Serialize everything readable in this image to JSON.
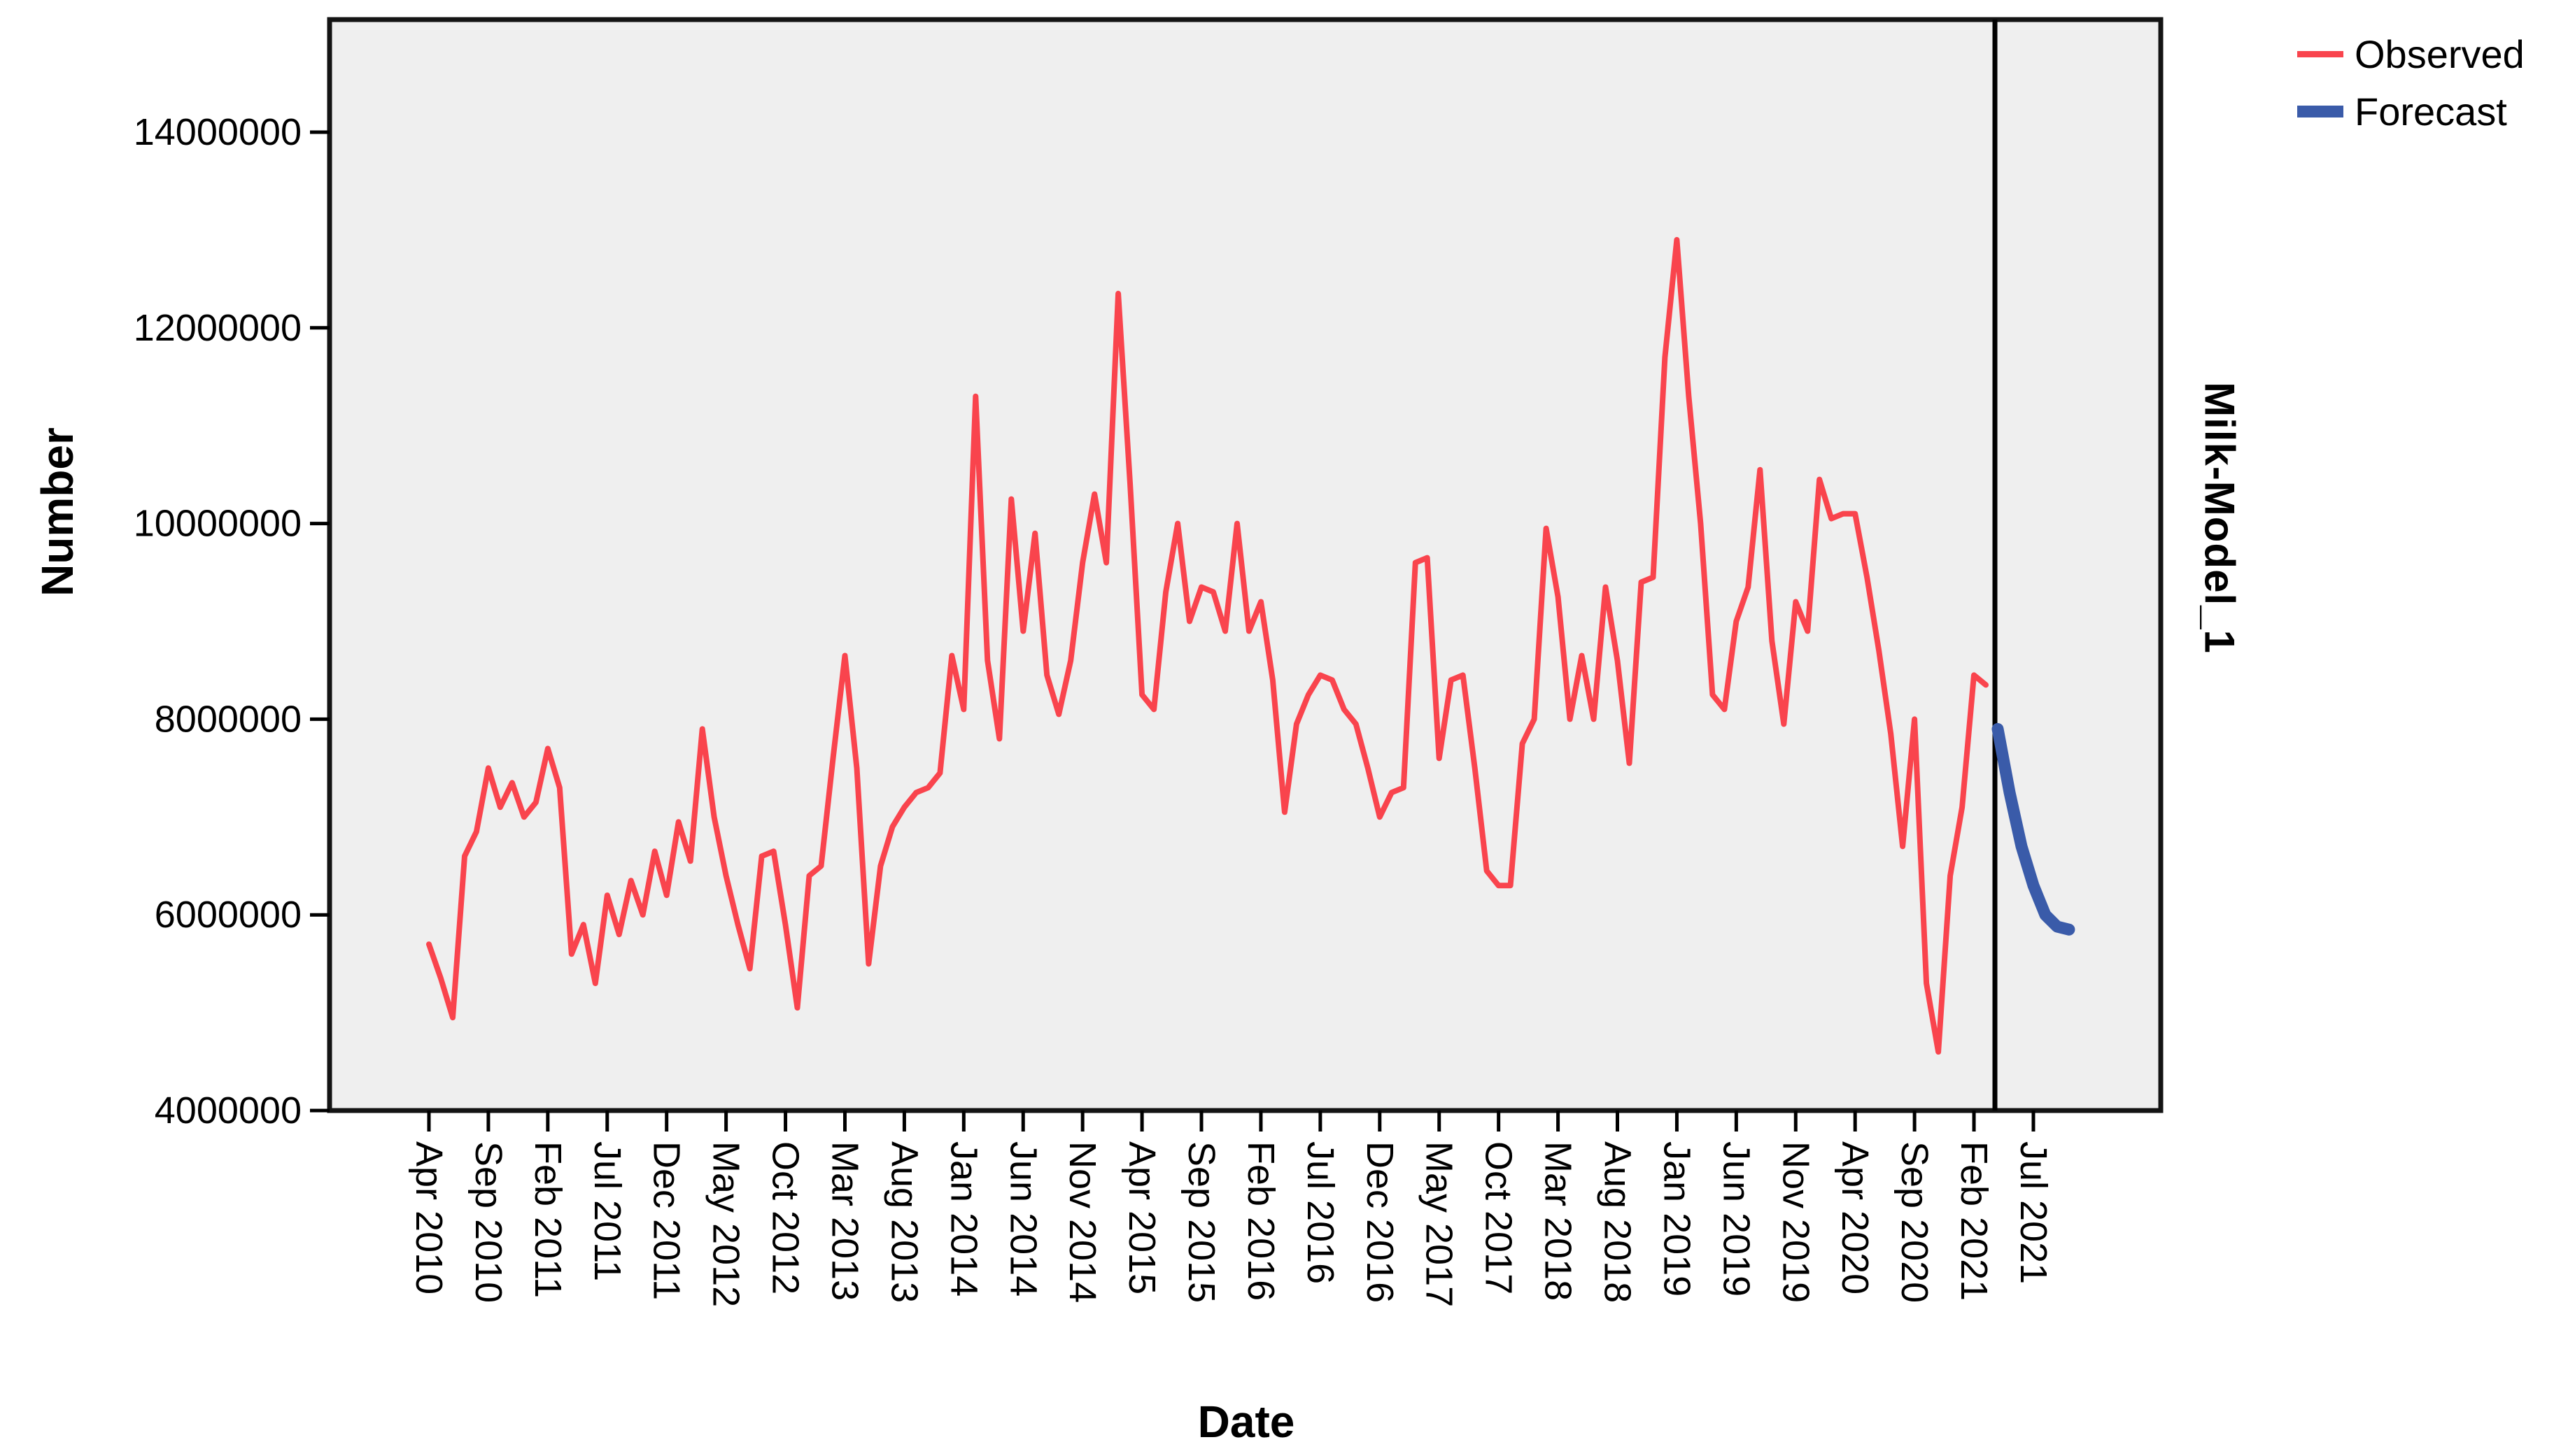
{
  "chart": {
    "y_axis_title": "Number",
    "x_axis_title": "Date",
    "model_label": "Milk-Model_1",
    "plot_bg_color": "#efefef",
    "frame_color": "#141414",
    "observed_color": "#f9444d",
    "forecast_color": "#3a5ba9",
    "y_tick_labels": [
      "4000000",
      "6000000",
      "8000000",
      "10000000",
      "12000000",
      "14000000"
    ],
    "x_tick_labels": [
      "Apr 2010",
      "Sep 2010",
      "Feb 2011",
      "Jul 2011",
      "Dec 2011",
      "May 2012",
      "Oct 2012",
      "Mar 2013",
      "Aug 2013",
      "Jan 2014",
      "Jun 2014",
      "Nov 2014",
      "Apr 2015",
      "Sep 2015",
      "Feb 2016",
      "Jul 2016",
      "Dec 2016",
      "May 2017",
      "Oct 2017",
      "Mar 2018",
      "Aug 2018",
      "Jan 2019",
      "Jun 2019",
      "Nov 2019",
      "Apr 2020",
      "Sep 2020",
      "Feb 2021",
      "Jul 2021"
    ]
  },
  "legend": {
    "observed_label": "Observed",
    "forecast_label": "Forecast"
  },
  "chart_data": {
    "type": "line",
    "title": "",
    "xlabel": "Date",
    "ylabel": "Number",
    "ylim": [
      4000000,
      15000000
    ],
    "y_ticks": [
      4000000,
      6000000,
      8000000,
      10000000,
      12000000,
      14000000
    ],
    "x_tick_labels_shown": [
      "Apr 2010",
      "Sep 2010",
      "Feb 2011",
      "Jul 2011",
      "Dec 2011",
      "May 2012",
      "Oct 2012",
      "Mar 2013",
      "Aug 2013",
      "Jan 2014",
      "Jun 2014",
      "Nov 2014",
      "Apr 2015",
      "Sep 2015",
      "Feb 2016",
      "Jul 2016",
      "Dec 2016",
      "May 2017",
      "Oct 2017",
      "Mar 2018",
      "Aug 2018",
      "Jan 2019",
      "Jun 2019",
      "Nov 2019",
      "Apr 2020",
      "Sep 2020",
      "Feb 2021",
      "Jul 2021"
    ],
    "x_tick_month_step": 5,
    "grid": false,
    "legend_position": "top-right",
    "forecast_separator_month": "Apr 2021",
    "series": [
      {
        "name": "Observed",
        "start_month": "Apr 2010",
        "frequency": "monthly",
        "values": [
          5700000,
          5350000,
          4950000,
          6600000,
          6850000,
          7500000,
          7100000,
          7350000,
          7000000,
          7150000,
          7700000,
          7300000,
          5600000,
          5900000,
          5300000,
          6200000,
          5800000,
          6350000,
          6000000,
          6650000,
          6200000,
          6950000,
          6550000,
          7900000,
          7000000,
          6400000,
          5900000,
          5450000,
          6600000,
          6650000,
          5900000,
          5050000,
          6400000,
          6500000,
          7600000,
          8650000,
          7500000,
          5500000,
          6500000,
          6900000,
          7100000,
          7250000,
          7300000,
          7450000,
          8650000,
          8100000,
          11300000,
          8600000,
          7800000,
          10250000,
          8900000,
          9900000,
          8450000,
          8050000,
          8600000,
          9600000,
          10300000,
          9600000,
          12350000,
          10400000,
          8250000,
          8100000,
          9300000,
          10000000,
          9000000,
          9350000,
          9300000,
          8900000,
          10000000,
          8900000,
          9200000,
          8400000,
          7050000,
          7950000,
          8250000,
          8450000,
          8400000,
          8100000,
          7950000,
          7500000,
          7000000,
          7250000,
          7300000,
          9600000,
          9650000,
          7600000,
          8400000,
          8450000,
          7500000,
          6450000,
          6300000,
          6300000,
          7750000,
          8000000,
          9950000,
          9250000,
          8000000,
          8650000,
          8000000,
          9350000,
          8600000,
          7550000,
          9400000,
          9450000,
          11700000,
          12900000,
          11300000,
          10000000,
          8250000,
          8100000,
          9000000,
          9350000,
          10550000,
          8800000,
          7950000,
          9200000,
          8900000,
          10450000,
          10050000,
          10100000,
          10100000,
          9450000,
          8700000,
          7850000,
          6700000,
          8000000,
          5300000,
          4600000,
          6400000,
          7100000,
          8450000,
          8350000
        ]
      },
      {
        "name": "Forecast",
        "start_month": "Apr 2021",
        "frequency": "monthly",
        "values": [
          7900000,
          7250000,
          6700000,
          6300000,
          6000000,
          5880000,
          5850000
        ]
      }
    ]
  }
}
